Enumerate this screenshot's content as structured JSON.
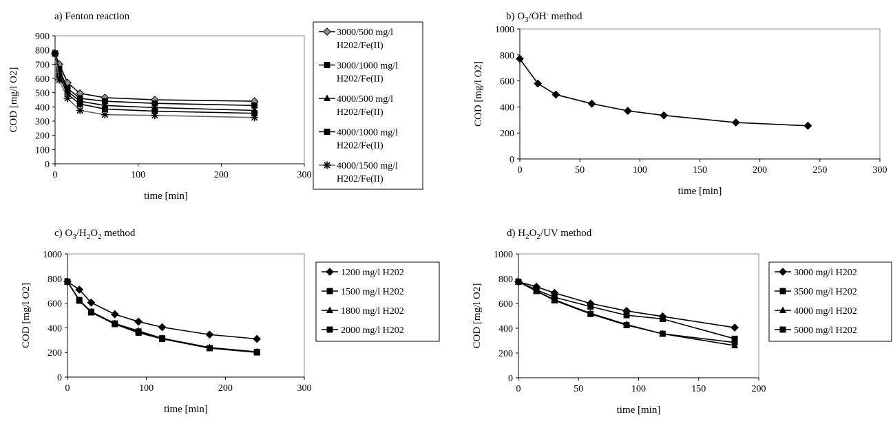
{
  "chart_data": [
    {
      "id": "a",
      "type": "line",
      "title": "a) Fenton reaction",
      "xlabel": "time [min]",
      "ylabel": "COD [mg/l O2]",
      "xlim": [
        0,
        300
      ],
      "ylim": [
        0,
        900
      ],
      "xticks": [
        0,
        100,
        200,
        300
      ],
      "yticks": [
        0,
        100,
        200,
        300,
        400,
        500,
        600,
        700,
        800,
        900
      ],
      "grid": false,
      "legend": "right",
      "x": [
        0,
        5,
        15,
        30,
        60,
        120,
        240
      ],
      "series": [
        {
          "name_line1": "3000/500 mg/l",
          "name_line2": "H202/Fe(II)",
          "marker": "diamond",
          "color": "#000000",
          "fill": "#8a8ea8",
          "values": [
            775,
            700,
            570,
            495,
            465,
            450,
            440
          ]
        },
        {
          "name_line1": "3000/1000 mg/l",
          "name_line2": "H202/Fe(II)",
          "marker": "square",
          "color": "#000000",
          "fill": "#000000",
          "values": [
            775,
            665,
            530,
            460,
            440,
            425,
            410
          ]
        },
        {
          "name_line1": "4000/500 mg/l",
          "name_line2": "H202/Fe(II)",
          "marker": "triangle",
          "color": "#000000",
          "fill": "#000000",
          "values": [
            775,
            645,
            510,
            440,
            410,
            395,
            375
          ]
        },
        {
          "name_line1": "4000/1000 mg/l",
          "name_line2": "H202/Fe(II)",
          "marker": "square",
          "color": "#000000",
          "fill": "#000000",
          "values": [
            775,
            620,
            490,
            420,
            385,
            370,
            355
          ]
        },
        {
          "name_line1": "4000/1500 mg/l",
          "name_line2": "H202/Fe(II)",
          "marker": "star",
          "color": "#7a5a66",
          "fill": "#000000",
          "values": [
            775,
            590,
            460,
            375,
            345,
            340,
            325
          ]
        }
      ]
    },
    {
      "id": "b",
      "type": "line",
      "title_base": "b) O",
      "title_sub": "3",
      "title_mid": "/OH",
      "title_sup": "-",
      "title_end": " method",
      "xlabel": "time [min]",
      "ylabel": "COD [mg/l O2]",
      "xlim": [
        0,
        300
      ],
      "ylim": [
        0,
        1000
      ],
      "xticks": [
        0,
        50,
        100,
        150,
        200,
        250,
        300
      ],
      "yticks": [
        0,
        200,
        400,
        600,
        800,
        1000
      ],
      "grid": false,
      "legend": "none",
      "x": [
        0,
        15,
        30,
        60,
        90,
        120,
        180,
        240
      ],
      "series": [
        {
          "marker": "diamond",
          "color": "#000000",
          "fill": "#000000",
          "values": [
            770,
            580,
            495,
            425,
            370,
            335,
            280,
            255
          ]
        }
      ]
    },
    {
      "id": "c",
      "type": "line",
      "title_parts": [
        "c) O",
        "3",
        "/H",
        "2",
        "O",
        "2",
        " method"
      ],
      "xlabel": "time [min]",
      "ylabel": "COD [mg/l O2]",
      "xlim": [
        0,
        300
      ],
      "ylim": [
        0,
        1000
      ],
      "xticks": [
        0,
        100,
        200,
        300
      ],
      "yticks": [
        0,
        200,
        400,
        600,
        800,
        1000
      ],
      "grid": false,
      "legend": "right",
      "x": [
        0,
        15,
        30,
        60,
        90,
        120,
        180,
        240
      ],
      "series": [
        {
          "name": "1200 mg/l H202",
          "marker": "diamond",
          "color": "#000000",
          "fill": "#000000",
          "values": [
            775,
            710,
            605,
            510,
            450,
            405,
            345,
            310
          ]
        },
        {
          "name": "1500 mg/l H202",
          "marker": "square",
          "color": "#000000",
          "fill": "#000000",
          "values": [
            775,
            625,
            530,
            435,
            370,
            315,
            235,
            205
          ]
        },
        {
          "name": "1800 mg/l H202",
          "marker": "triangle",
          "color": "#000000",
          "fill": "#000000",
          "values": [
            775,
            625,
            530,
            435,
            375,
            315,
            240,
            205
          ]
        },
        {
          "name": "2000 mg/l H202",
          "marker": "square",
          "color": "#000000",
          "fill": "#000000",
          "values": [
            775,
            620,
            525,
            430,
            360,
            310,
            235,
            200
          ]
        }
      ]
    },
    {
      "id": "d",
      "type": "line",
      "title_parts": [
        "d) H",
        "2",
        "O",
        "2",
        "/UV method"
      ],
      "xlabel": "time [min]",
      "ylabel": "COD [mg/l O2]",
      "xlim": [
        0,
        200
      ],
      "ylim": [
        0,
        1000
      ],
      "xticks": [
        0,
        50,
        100,
        150,
        200
      ],
      "yticks": [
        0,
        200,
        400,
        600,
        800,
        1000
      ],
      "grid": false,
      "legend": "right",
      "x": [
        0,
        15,
        30,
        60,
        90,
        120,
        180
      ],
      "series": [
        {
          "name": "3000 mg/l H202",
          "marker": "diamond",
          "color": "#000000",
          "fill": "#000000",
          "values": [
            775,
            735,
            685,
            600,
            540,
            495,
            405
          ]
        },
        {
          "name": "3500 mg/l H202",
          "marker": "square",
          "color": "#000000",
          "fill": "#000000",
          "values": [
            775,
            710,
            650,
            575,
            505,
            475,
            315
          ]
        },
        {
          "name": "4000 mg/l H202",
          "marker": "triangle",
          "color": "#000000",
          "fill": "#000000",
          "values": [
            775,
            700,
            630,
            520,
            430,
            355,
            260
          ]
        },
        {
          "name": "5000 mg/l H202",
          "marker": "square",
          "color": "#000000",
          "fill": "#000000",
          "values": [
            775,
            700,
            625,
            515,
            425,
            355,
            285
          ]
        }
      ]
    }
  ]
}
